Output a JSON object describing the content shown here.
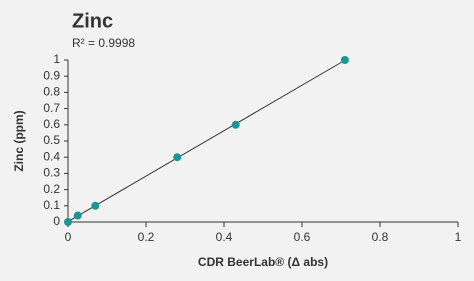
{
  "chart_data": {
    "type": "scatter",
    "title": "Zinc",
    "subtitle": "R² = 0.9998",
    "x_label": "CDR BeerLab® (Δ abs)",
    "y_label": "Zinc (ppm)",
    "series": [
      {
        "name": "Zinc",
        "color": "#1a9696",
        "x": [
          0,
          0.025,
          0.07,
          0.28,
          0.43,
          0.71
        ],
        "values": [
          0,
          0.04,
          0.1,
          0.4,
          0.6,
          1.0
        ]
      }
    ],
    "trendline": true,
    "xlim": [
      0,
      1
    ],
    "xticks": [
      0,
      0.2,
      0.4,
      0.6,
      0.8,
      1
    ],
    "ylim": [
      0,
      1
    ],
    "yticks": [
      0,
      0.1,
      0.2,
      0.3,
      0.4,
      0.5,
      0.6,
      0.7,
      0.8,
      0.9,
      1
    ],
    "grid": false
  }
}
